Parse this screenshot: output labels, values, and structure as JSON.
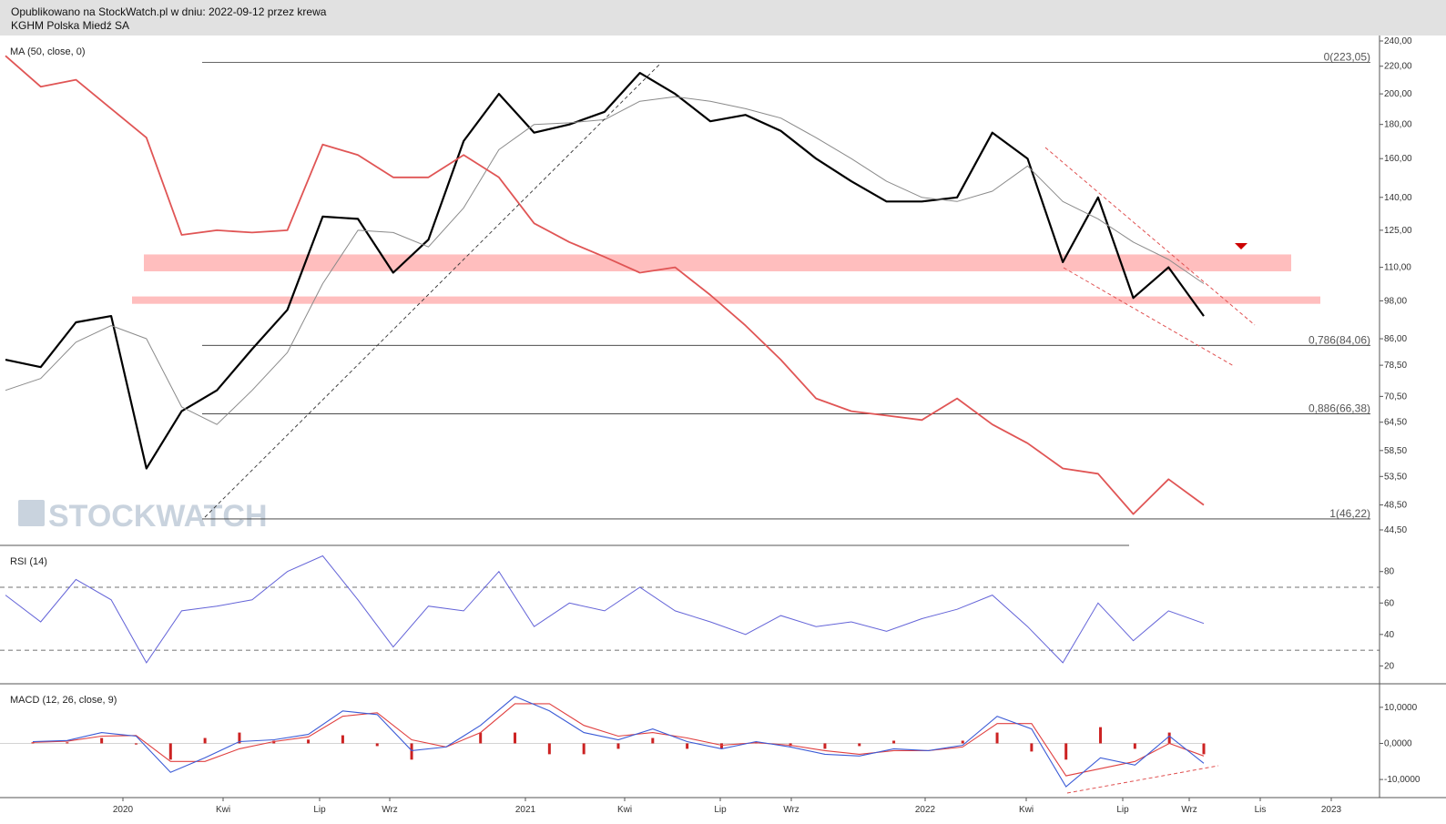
{
  "header": {
    "line1": "Opublikowano na StockWatch.pl w dniu: 2022-09-12 przez krewa",
    "line2": "KGHM Polska Miedź SA"
  },
  "watermark": "STOCKWATCH",
  "colors": {
    "price": "#000000",
    "ma": "#8a8a8a",
    "comparison": "#e05555",
    "zone": "#ffb3b3",
    "trend": "#e05050",
    "rsi": "#6464d8",
    "macd_line": "#3b5bd6",
    "macd_signal": "#e04040",
    "histogram": "#cc2222"
  },
  "chart_data": [
    {
      "type": "line",
      "panel": "price",
      "title": "MA (50, close, 0)",
      "scale": "log",
      "ylim": [
        44.5,
        240.0
      ],
      "y_ticks": [
        "240,00",
        "220,00",
        "200,00",
        "180,00",
        "160,00",
        "140,00",
        "125,00",
        "110,00",
        "98,00",
        "86,00",
        "78,50",
        "70,50",
        "64,50",
        "58,50",
        "53,50",
        "48,50",
        "44,50"
      ],
      "x_ticks": [
        "2020",
        "Kwi",
        "Lip",
        "Wrz",
        "2021",
        "Kwi",
        "Lip",
        "Wrz",
        "2022",
        "Kwi",
        "Lip",
        "Wrz",
        "Lis",
        "2023"
      ],
      "fib_levels": [
        {
          "label": "0(223,05)",
          "value": 223.05
        },
        {
          "label": "0,786(84,06)",
          "value": 84.06
        },
        {
          "label": "0,886(66,38)",
          "value": 66.38
        },
        {
          "label": "1(46,22)",
          "value": 46.22
        }
      ],
      "resistance_zones": [
        {
          "from": 108.5,
          "to": 115.0
        },
        {
          "from": 97.0,
          "to": 99.5
        }
      ],
      "x": [
        "2019-11",
        "2019-12",
        "2020-01",
        "2020-02",
        "2020-03",
        "2020-04",
        "2020-05",
        "2020-06",
        "2020-07",
        "2020-08",
        "2020-09",
        "2020-10",
        "2020-11",
        "2020-12",
        "2021-01",
        "2021-02",
        "2021-03",
        "2021-04",
        "2021-05",
        "2021-06",
        "2021-07",
        "2021-08",
        "2021-09",
        "2021-10",
        "2021-11",
        "2021-12",
        "2022-01",
        "2022-02",
        "2022-03",
        "2022-04",
        "2022-05",
        "2022-06",
        "2022-07",
        "2022-08",
        "2022-09"
      ],
      "series": [
        {
          "role": "price",
          "values": [
            80.0,
            78.0,
            91.0,
            93.0,
            55.0,
            67.0,
            72.0,
            83.0,
            95.0,
            131.0,
            130.0,
            108.0,
            121.0,
            170.0,
            200.0,
            175.0,
            180.0,
            188.0,
            215.0,
            200.0,
            182.0,
            186.0,
            176.0,
            160.0,
            148.0,
            138.0,
            138.0,
            140.0,
            175.0,
            160.0,
            112.0,
            140.0,
            99.0,
            110.0,
            93.0
          ]
        },
        {
          "role": "ma",
          "values": [
            72.0,
            75.0,
            85.0,
            90.0,
            86.0,
            68.0,
            64.0,
            72.0,
            82.0,
            104.0,
            125.0,
            124.0,
            118.0,
            135.0,
            165.0,
            180.0,
            181.0,
            183.0,
            195.0,
            198.0,
            195.0,
            190.0,
            184.0,
            172.0,
            160.0,
            148.0,
            140.0,
            138.0,
            143.0,
            156.0,
            138.0,
            130.0,
            120.0,
            113.0,
            104.0
          ]
        },
        {
          "role": "comparison",
          "values": [
            228.0,
            205.0,
            210.0,
            190.0,
            172.0,
            123.0,
            125.0,
            124.0,
            125.0,
            168.0,
            162.0,
            150.0,
            150.0,
            162.0,
            150.0,
            128.0,
            120.0,
            114.0,
            108.0,
            110.0,
            100.0,
            90.0,
            80.0,
            70.0,
            67.0,
            66.0,
            65.0,
            70.0,
            64.0,
            60.0,
            55.0,
            54.0,
            47.0,
            53.0,
            48.5
          ]
        }
      ]
    },
    {
      "type": "line",
      "panel": "rsi",
      "title": "RSI (14)",
      "ylim": [
        15,
        92
      ],
      "y_ticks": [
        "80",
        "60",
        "40",
        "20"
      ],
      "levels": [
        70,
        30
      ],
      "series": [
        {
          "name": "RSI",
          "values": [
            65,
            48,
            75,
            62,
            22,
            55,
            58,
            62,
            80,
            90,
            62,
            32,
            58,
            55,
            80,
            45,
            60,
            55,
            70,
            55,
            48,
            40,
            52,
            45,
            48,
            42,
            50,
            56,
            65,
            45,
            22,
            60,
            36,
            55,
            47
          ]
        }
      ]
    },
    {
      "type": "line",
      "panel": "macd",
      "title": "MACD (12, 26, close, 9)",
      "ylim": [
        -13.0,
        14.5
      ],
      "y_ticks": [
        "10,0000",
        "0,0000",
        "-10,0000"
      ],
      "series": [
        {
          "name": "MACD",
          "values": [
            0.5,
            0.8,
            3.0,
            2.0,
            -8.0,
            -4.0,
            0.5,
            1.0,
            2.5,
            9.0,
            8.0,
            -2.0,
            -1.0,
            5.0,
            13.0,
            9.0,
            3.0,
            1.0,
            4.0,
            0.5,
            -1.5,
            0.5,
            -1.0,
            -3.0,
            -3.5,
            -1.5,
            -2.0,
            -0.5,
            7.5,
            4.0,
            -12.0,
            -4.0,
            -6.0,
            2.0,
            -5.5
          ]
        },
        {
          "name": "Signal",
          "values": [
            0.3,
            0.6,
            2.0,
            2.2,
            -5.0,
            -5.0,
            -1.5,
            0.5,
            1.8,
            7.5,
            8.5,
            1.0,
            -1.0,
            3.0,
            11.0,
            11.0,
            5.0,
            2.0,
            3.0,
            1.5,
            -0.5,
            0.2,
            -0.5,
            -2.0,
            -3.0,
            -2.0,
            -2.0,
            -1.0,
            5.5,
            5.5,
            -9.0,
            -7.0,
            -5.0,
            0.0,
            -3.5
          ]
        }
      ]
    }
  ]
}
